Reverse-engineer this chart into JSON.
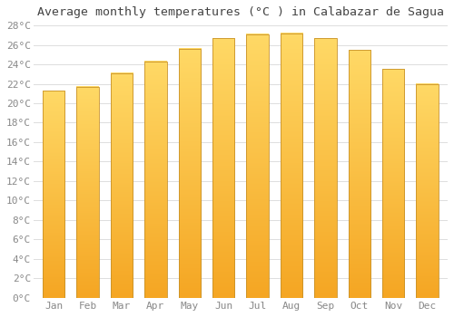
{
  "title": "Average monthly temperatures (°C ) in Calabazar de Sagua",
  "months": [
    "Jan",
    "Feb",
    "Mar",
    "Apr",
    "May",
    "Jun",
    "Jul",
    "Aug",
    "Sep",
    "Oct",
    "Nov",
    "Dec"
  ],
  "values": [
    21.3,
    21.7,
    23.1,
    24.3,
    25.6,
    26.7,
    27.1,
    27.2,
    26.7,
    25.5,
    23.5,
    22.0
  ],
  "bar_color_top": "#FFD966",
  "bar_color_bottom": "#F5A623",
  "bar_edge_color": "#C8922A",
  "background_color": "#FFFFFF",
  "grid_color": "#DDDDDD",
  "title_fontsize": 9.5,
  "tick_fontsize": 8,
  "tick_color": "#888888",
  "title_color": "#444444",
  "ylim": [
    0,
    28
  ],
  "ytick_step": 2,
  "figsize": [
    5.0,
    3.5
  ],
  "dpi": 100,
  "bar_width": 0.65
}
